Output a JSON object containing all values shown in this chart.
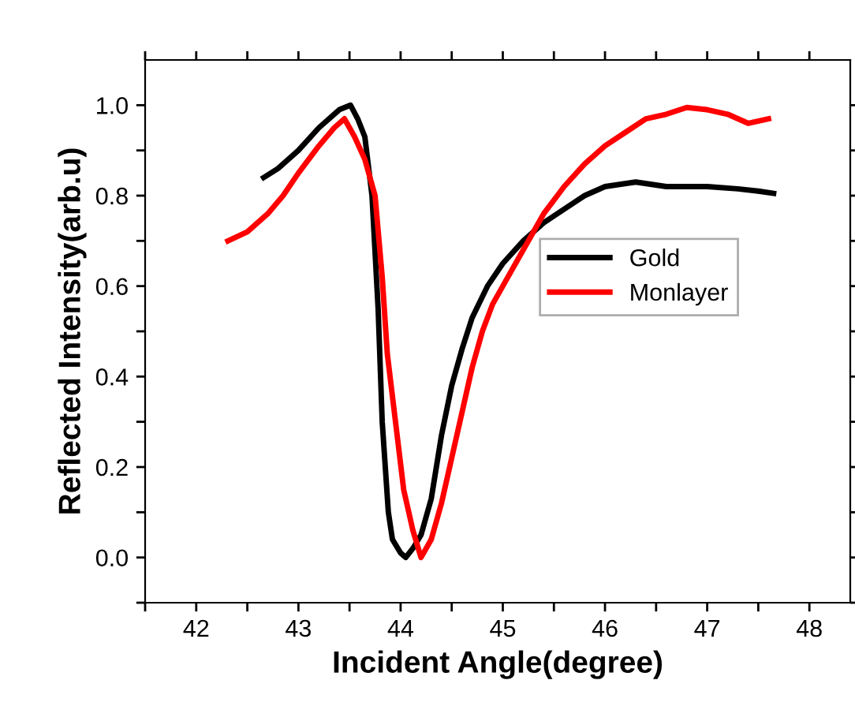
{
  "chart_data": {
    "type": "line",
    "xlabel": "Incident Angle(degree)",
    "ylabel": "Reflected Intensity(arb.u)",
    "xlim": [
      41.5,
      48.4
    ],
    "ylim": [
      -0.1,
      1.1
    ],
    "xticks": [
      {
        "value": 41.5,
        "label": null
      },
      42,
      {
        "value": 42.5,
        "label": null
      },
      43,
      {
        "value": 43.5,
        "label": null
      },
      44,
      {
        "value": 44.5,
        "label": null
      },
      45,
      {
        "value": 45.5,
        "label": null
      },
      46,
      {
        "value": 46.5,
        "label": null
      },
      47,
      {
        "value": 47.5,
        "label": null
      },
      48
    ],
    "yticks": [
      {
        "value": -0.1,
        "label": null
      },
      {
        "value": 0,
        "label": "0.0"
      },
      {
        "value": 0.1,
        "label": null
      },
      0.2,
      {
        "value": 0.3,
        "label": null
      },
      0.4,
      {
        "value": 0.5,
        "label": null
      },
      0.6,
      {
        "value": 0.7,
        "label": null
      },
      0.8,
      {
        "value": 0.9,
        "label": null
      },
      {
        "value": 1,
        "label": "1.0"
      }
    ],
    "legend": "right",
    "grid": false,
    "marker": "none",
    "line_style": "solid",
    "series": [
      {
        "name": "Gold",
        "color": "#000000",
        "x": [
          42.66,
          42.8,
          43.0,
          43.2,
          43.4,
          43.51,
          43.58,
          43.65,
          43.72,
          43.78,
          43.82,
          43.88,
          43.92,
          44.0,
          44.05,
          44.12,
          44.2,
          44.3,
          44.4,
          44.5,
          44.6,
          44.7,
          44.85,
          45.0,
          45.2,
          45.4,
          45.6,
          45.8,
          46.0,
          46.3,
          46.6,
          47.0,
          47.3,
          47.5,
          47.65
        ],
        "values": [
          0.84,
          0.86,
          0.9,
          0.95,
          0.99,
          1.0,
          0.97,
          0.93,
          0.8,
          0.55,
          0.3,
          0.1,
          0.04,
          0.01,
          0.0,
          0.02,
          0.05,
          0.13,
          0.27,
          0.38,
          0.46,
          0.53,
          0.6,
          0.65,
          0.7,
          0.74,
          0.77,
          0.8,
          0.82,
          0.83,
          0.82,
          0.82,
          0.815,
          0.81,
          0.805
        ]
      },
      {
        "name": "Monlayer",
        "color": "#ff0000",
        "x": [
          42.31,
          42.5,
          42.7,
          42.85,
          43.0,
          43.2,
          43.35,
          43.45,
          43.55,
          43.65,
          43.75,
          43.82,
          43.87,
          43.95,
          44.03,
          44.12,
          44.2,
          44.3,
          44.4,
          44.5,
          44.6,
          44.7,
          44.8,
          44.9,
          45.0,
          45.2,
          45.4,
          45.6,
          45.8,
          46.0,
          46.2,
          46.4,
          46.6,
          46.8,
          47.0,
          47.2,
          47.4,
          47.6
        ],
        "values": [
          0.7,
          0.72,
          0.76,
          0.8,
          0.85,
          0.91,
          0.95,
          0.97,
          0.93,
          0.88,
          0.8,
          0.62,
          0.45,
          0.3,
          0.15,
          0.06,
          0.0,
          0.04,
          0.12,
          0.22,
          0.32,
          0.42,
          0.5,
          0.56,
          0.6,
          0.68,
          0.76,
          0.82,
          0.87,
          0.91,
          0.94,
          0.97,
          0.98,
          0.995,
          0.99,
          0.98,
          0.96,
          0.97
        ]
      }
    ]
  }
}
